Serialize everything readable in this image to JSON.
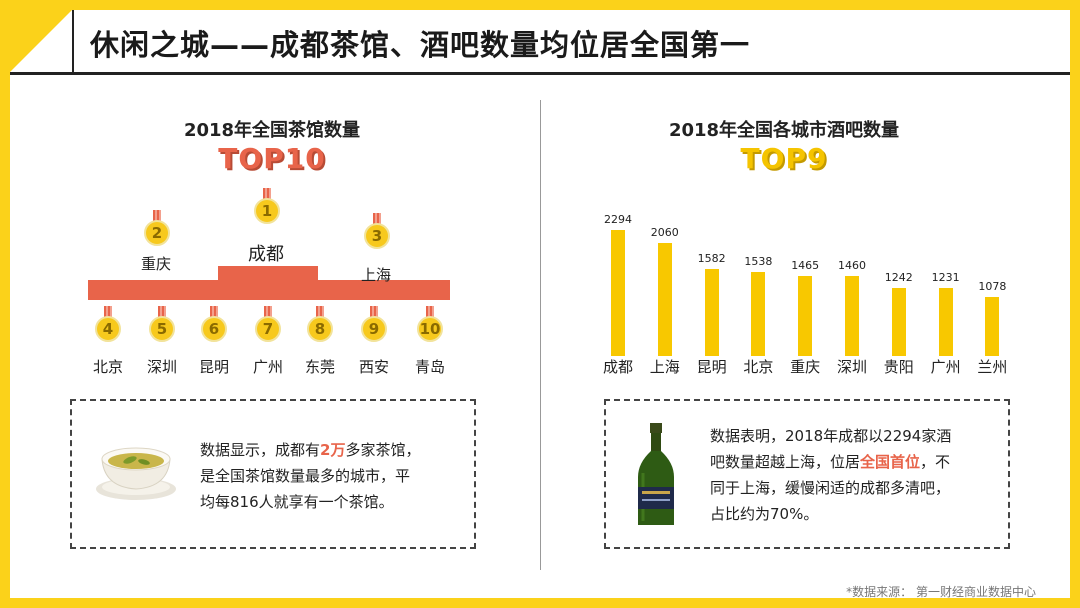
{
  "title": "休闲之城——成都茶馆、酒吧数量均位居全国第一",
  "left": {
    "title": "2018年全国茶馆数量",
    "badge": "TOP10",
    "podium": [
      {
        "rank": "1",
        "city": "成都"
      },
      {
        "rank": "2",
        "city": "重庆"
      },
      {
        "rank": "3",
        "city": "上海"
      }
    ],
    "others": [
      {
        "rank": "4",
        "city": "北京"
      },
      {
        "rank": "5",
        "city": "深圳"
      },
      {
        "rank": "6",
        "city": "昆明"
      },
      {
        "rank": "7",
        "city": "广州"
      },
      {
        "rank": "8",
        "city": "东莞"
      },
      {
        "rank": "9",
        "city": "西安"
      },
      {
        "rank": "10",
        "city": "青岛"
      }
    ],
    "info": {
      "line1_a": "数据显示，成都有",
      "line1_hl": "2万",
      "line1_b": "多家茶馆，",
      "line2": "是全国茶馆数量最多的城市，平",
      "line3": "均每816人就享有一个茶馆。"
    }
  },
  "right": {
    "title": "2018年全国各城市酒吧数量",
    "badge": "TOP9",
    "info": {
      "line1": "数据表明，2018年成都以2294家酒",
      "line2_a": "吧数量超越上海，位居",
      "line2_hl": "全国首位",
      "line2_b": "，不",
      "line3": "同于上海，缓慢闲适的成都多清吧，",
      "line4": "占比约为70%。"
    }
  },
  "chart_data": {
    "type": "bar",
    "title": "2018年全国各城市酒吧数量",
    "categories": [
      "成都",
      "上海",
      "昆明",
      "北京",
      "重庆",
      "深圳",
      "贵阳",
      "广州",
      "兰州"
    ],
    "values": [
      2294,
      2060,
      1582,
      1538,
      1465,
      1460,
      1242,
      1231,
      1078
    ],
    "colors": {
      "bar": "#f8c800"
    }
  },
  "source": "*数据来源： 第一财经商业数据中心",
  "colors": {
    "accent_red": "#e8644a",
    "accent_yellow": "#fbd21a"
  }
}
